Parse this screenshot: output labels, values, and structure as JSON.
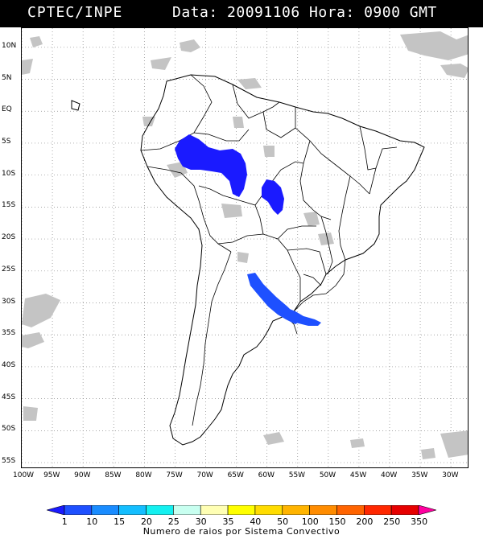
{
  "header": {
    "agency": "CPTEC/INPE",
    "datetime": "Data: 20091106 Hora: 0900 GMT"
  },
  "axes": {
    "lat_labels": [
      "10N",
      "5N",
      "EQ",
      "5S",
      "10S",
      "15S",
      "20S",
      "25S",
      "30S",
      "35S",
      "40S",
      "45S",
      "50S",
      "55S"
    ],
    "lat_values": [
      10,
      5,
      0,
      -5,
      -10,
      -15,
      -20,
      -25,
      -30,
      -35,
      -40,
      -45,
      -50,
      -55
    ],
    "lon_labels": [
      "100W",
      "95W",
      "90W",
      "85W",
      "80W",
      "75W",
      "70W",
      "65W",
      "60W",
      "55W",
      "50W",
      "45W",
      "40W",
      "35W",
      "30W"
    ],
    "lon_values": [
      -100,
      -95,
      -90,
      -85,
      -80,
      -75,
      -70,
      -65,
      -60,
      -55,
      -50,
      -45,
      -40,
      -35,
      -30
    ],
    "lon_range": [
      -100,
      -27
    ],
    "lat_range": [
      13,
      -56
    ]
  },
  "colorbar": {
    "labels": [
      "1",
      "10",
      "15",
      "20",
      "25",
      "30",
      "35",
      "40",
      "50",
      "100",
      "150",
      "200",
      "250",
      "350"
    ],
    "colors": [
      "#1a1aff",
      "#1e50ff",
      "#1a8cff",
      "#14beff",
      "#14f0f0",
      "#c8fff0",
      "#ffffb4",
      "#ffff00",
      "#ffdc00",
      "#ffb400",
      "#ff8c00",
      "#ff6400",
      "#ff2800",
      "#e60000",
      "#ff00a0"
    ],
    "title": "Numero de raios por Sistema Convectivo"
  },
  "storms": [
    {
      "name": "amazon-west-cluster",
      "value_class": "1",
      "color": "#1a1aff"
    },
    {
      "name": "mato-grosso-cluster",
      "value_class": "1",
      "color": "#1a1aff"
    },
    {
      "name": "parana-uruguay-cluster",
      "value_class": "10",
      "color": "#1e50ff"
    }
  ]
}
